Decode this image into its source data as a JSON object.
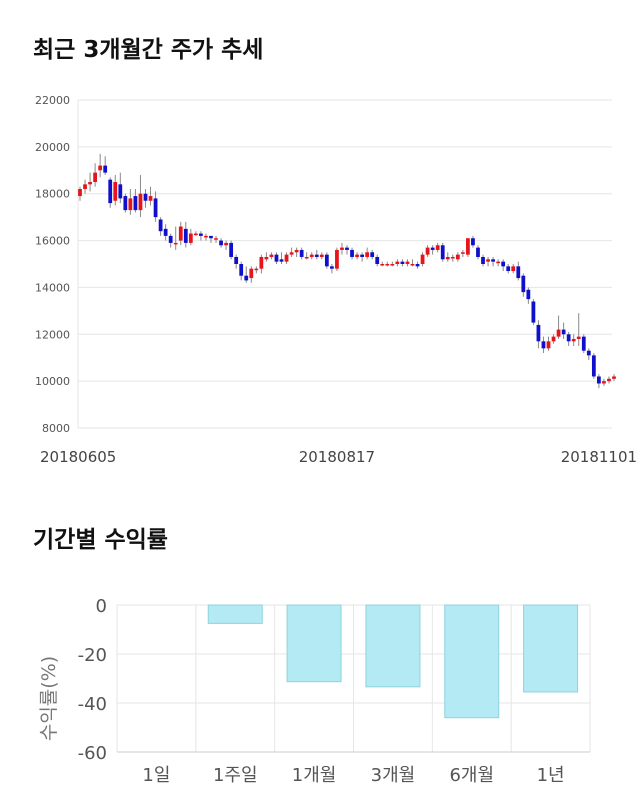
{
  "sections": [
    {
      "title": "최근 3개월간 주가 추세"
    },
    {
      "title": "기간별 수익률"
    }
  ],
  "colors": {
    "up": "#e8141b",
    "down": "#1010cc",
    "wick": "#888888",
    "grid": "#e6e6e6",
    "bar": "#b3eaf3",
    "bar_stroke": "#8fd3de"
  },
  "chart_data": [
    {
      "type": "candlestick",
      "title": "최근 3개월간 주가 추세",
      "ylim": [
        8000,
        22000
      ],
      "yticks": [
        8000,
        10000,
        12000,
        14000,
        16000,
        18000,
        20000,
        22000
      ],
      "xtick_labels": [
        {
          "index": 0,
          "label": "20180605"
        },
        {
          "index": 51,
          "label": "20180817"
        },
        {
          "index": 103,
          "label": "20181101"
        }
      ],
      "grid": true,
      "candles": [
        [
          17900,
          18200,
          17700,
          18300
        ],
        [
          18200,
          18400,
          18000,
          18600
        ],
        [
          18400,
          18500,
          18100,
          18900
        ],
        [
          18500,
          18900,
          18300,
          19300
        ],
        [
          19000,
          19200,
          18700,
          19700
        ],
        [
          19200,
          18900,
          18800,
          19600
        ],
        [
          18600,
          17600,
          17400,
          18700
        ],
        [
          17700,
          18500,
          17500,
          18800
        ],
        [
          18400,
          17800,
          17600,
          18900
        ],
        [
          17900,
          17300,
          17200,
          18000
        ],
        [
          17300,
          17800,
          17100,
          18200
        ],
        [
          17900,
          17300,
          17200,
          18200
        ],
        [
          17300,
          18000,
          17000,
          18800
        ],
        [
          18000,
          17700,
          17400,
          18200
        ],
        [
          17700,
          17900,
          17500,
          18300
        ],
        [
          17800,
          17000,
          16800,
          18100
        ],
        [
          16900,
          16400,
          16200,
          17000
        ],
        [
          16500,
          16200,
          16000,
          16700
        ],
        [
          16200,
          15900,
          15700,
          16300
        ],
        [
          15900,
          15900,
          15600,
          16600
        ],
        [
          16000,
          16600,
          15800,
          16800
        ],
        [
          16500,
          15900,
          15700,
          16800
        ],
        [
          15900,
          16300,
          15800,
          16500
        ],
        [
          16300,
          16300,
          16200,
          16400
        ],
        [
          16300,
          16200,
          16000,
          16400
        ],
        [
          16200,
          16200,
          16000,
          16300
        ],
        [
          16200,
          16100,
          15900,
          16200
        ],
        [
          16100,
          16100,
          15900,
          16200
        ],
        [
          16000,
          15800,
          15700,
          16100
        ],
        [
          15800,
          15900,
          15600,
          16000
        ],
        [
          15900,
          15300,
          15200,
          16000
        ],
        [
          15300,
          15000,
          14800,
          15400
        ],
        [
          15000,
          14500,
          14300,
          15100
        ],
        [
          14500,
          14300,
          14200,
          14900
        ],
        [
          14400,
          14800,
          14200,
          14900
        ],
        [
          14800,
          14800,
          14600,
          14900
        ],
        [
          14800,
          15300,
          14600,
          15400
        ],
        [
          15200,
          15300,
          15100,
          15500
        ],
        [
          15300,
          15400,
          15200,
          15500
        ],
        [
          15400,
          15100,
          15000,
          15500
        ],
        [
          15200,
          15100,
          15000,
          15500
        ],
        [
          15100,
          15400,
          15000,
          15500
        ],
        [
          15400,
          15500,
          15300,
          15700
        ],
        [
          15500,
          15600,
          15300,
          15700
        ],
        [
          15600,
          15300,
          15200,
          15700
        ],
        [
          15300,
          15300,
          15200,
          15500
        ],
        [
          15300,
          15400,
          15200,
          15500
        ],
        [
          15400,
          15300,
          15200,
          15600
        ],
        [
          15300,
          15400,
          15200,
          15500
        ],
        [
          15400,
          14900,
          14800,
          15500
        ],
        [
          14900,
          14800,
          14600,
          15000
        ],
        [
          14800,
          15600,
          14700,
          15700
        ],
        [
          15600,
          15700,
          15400,
          15900
        ],
        [
          15700,
          15600,
          15400,
          15800
        ],
        [
          15600,
          15300,
          15200,
          15700
        ],
        [
          15300,
          15400,
          15200,
          15500
        ],
        [
          15400,
          15300,
          15100,
          15500
        ],
        [
          15300,
          15500,
          15200,
          15700
        ],
        [
          15500,
          15300,
          15200,
          15600
        ],
        [
          15300,
          15000,
          14900,
          15400
        ],
        [
          15000,
          15000,
          14900,
          15100
        ],
        [
          15000,
          15000,
          14900,
          15100
        ],
        [
          15000,
          15000,
          14900,
          15100
        ],
        [
          15000,
          15100,
          14900,
          15200
        ],
        [
          15100,
          15000,
          14900,
          15200
        ],
        [
          15000,
          15100,
          14900,
          15200
        ],
        [
          15000,
          15000,
          14900,
          15200
        ],
        [
          15000,
          14900,
          14800,
          15100
        ],
        [
          15000,
          15400,
          14900,
          15500
        ],
        [
          15400,
          15700,
          15300,
          15800
        ],
        [
          15700,
          15600,
          15400,
          15800
        ],
        [
          15600,
          15800,
          15500,
          15900
        ],
        [
          15800,
          15200,
          15100,
          15900
        ],
        [
          15200,
          15300,
          15100,
          15500
        ],
        [
          15300,
          15300,
          15100,
          15400
        ],
        [
          15200,
          15400,
          15100,
          15500
        ],
        [
          15500,
          15500,
          15300,
          15600
        ],
        [
          15400,
          16100,
          15300,
          16100
        ],
        [
          16100,
          15800,
          15700,
          16200
        ],
        [
          15700,
          15300,
          15200,
          15800
        ],
        [
          15300,
          15000,
          14900,
          15400
        ],
        [
          15100,
          15200,
          14900,
          15300
        ],
        [
          15200,
          15100,
          14900,
          15300
        ],
        [
          15100,
          15100,
          14900,
          15200
        ],
        [
          15100,
          14900,
          14700,
          15200
        ],
        [
          14900,
          14700,
          14600,
          15000
        ],
        [
          14700,
          14900,
          14600,
          15000
        ],
        [
          14900,
          14400,
          14300,
          15100
        ],
        [
          14500,
          13800,
          13600,
          14600
        ],
        [
          13900,
          13500,
          13300,
          14000
        ],
        [
          13400,
          12500,
          12400,
          13500
        ],
        [
          12400,
          11700,
          11400,
          12600
        ],
        [
          11700,
          11400,
          11200,
          11900
        ],
        [
          11400,
          11700,
          11300,
          11900
        ],
        [
          11700,
          11900,
          11600,
          12000
        ],
        [
          11900,
          12200,
          11800,
          12800
        ],
        [
          12200,
          12000,
          11800,
          12500
        ],
        [
          12000,
          11700,
          11500,
          12100
        ],
        [
          11700,
          11800,
          11500,
          12000
        ],
        [
          11800,
          11900,
          11500,
          12900
        ],
        [
          11900,
          11300,
          11200,
          12000
        ],
        [
          11300,
          11100,
          10900,
          11400
        ],
        [
          11100,
          10200,
          10100,
          11200
        ],
        [
          10200,
          9900,
          9700,
          10300
        ],
        [
          9900,
          10000,
          9800,
          10100
        ],
        [
          10000,
          10100,
          9900,
          10200
        ],
        [
          10100,
          10200,
          10000,
          10300
        ]
      ]
    },
    {
      "type": "bar",
      "title": "기간별 수익률",
      "ylabel": "수익률(%)",
      "ylim": [
        -60,
        0
      ],
      "yticks": [
        0,
        -20,
        -40,
        -60
      ],
      "categories": [
        "1일",
        "1주일",
        "1개월",
        "3개월",
        "6개월",
        "1년"
      ],
      "values": [
        0,
        -7.5,
        -31.3,
        -33.4,
        -46,
        -35.5
      ],
      "grid": true
    }
  ]
}
